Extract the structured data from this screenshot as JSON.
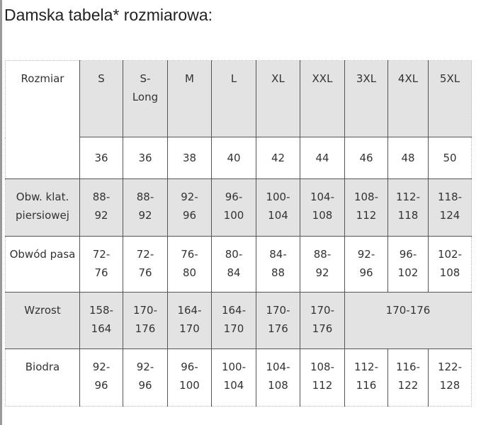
{
  "title": "Damska tabela* rozmiarowa:",
  "table": {
    "size_label": "Rozmiar",
    "sizes": [
      "S",
      "S-\nLong",
      "M",
      "L",
      "XL",
      "XXL",
      "3XL",
      "4XL",
      "5XL"
    ],
    "eu_sizes": [
      "36",
      "36",
      "38",
      "40",
      "42",
      "44",
      "46",
      "48",
      "50"
    ],
    "rows": [
      {
        "label": "Obw. klat. piersiowej",
        "values": [
          "88-\n92",
          "88-\n92",
          "92-\n96",
          "96-\n100",
          "100-\n104",
          "104-\n108",
          "108-\n112",
          "112-\n118",
          "118-\n124"
        ]
      },
      {
        "label": "Obwód pasa",
        "values": [
          "72-\n76",
          "72-\n76",
          "76-\n80",
          "80-\n84",
          "84-\n88",
          "88-\n92",
          "92-\n96",
          "96-\n102",
          "102-\n108"
        ]
      },
      {
        "label": "Wzrost",
        "values": [
          "158-\n164",
          "170-\n176",
          "164-\n170",
          "164-\n170",
          "170-\n176",
          "170-\n176",
          "170-176"
        ]
      },
      {
        "label": "Biodra",
        "values": [
          "92-\n96",
          "92-\n96",
          "96-\n100",
          "100-\n104",
          "104-\n108",
          "108-\n112",
          "112-\n116",
          "116-\n122",
          "122-\n128"
        ]
      }
    ]
  },
  "colors": {
    "shaded": "#e3e3e3",
    "border": "#555555"
  }
}
